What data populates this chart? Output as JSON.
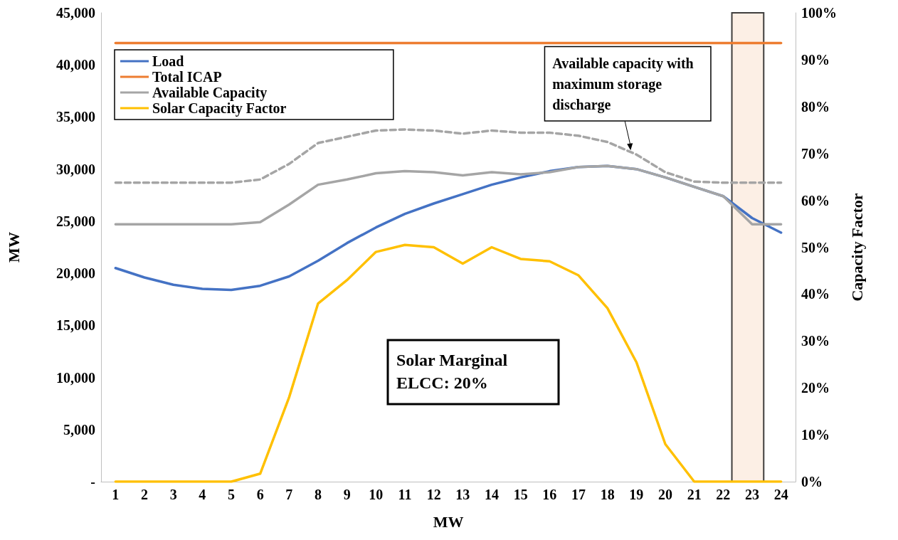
{
  "chart_data": {
    "type": "line",
    "xlabel": "MW",
    "ylabel": "MW",
    "y2label": "Capacity Factor",
    "x": [
      1,
      2,
      3,
      4,
      5,
      6,
      7,
      8,
      9,
      10,
      11,
      12,
      13,
      14,
      15,
      16,
      17,
      18,
      19,
      20,
      21,
      22,
      23,
      24
    ],
    "series": [
      {
        "name": "Load",
        "color": "#4472c4",
        "values": [
          20500,
          19600,
          18900,
          18500,
          18400,
          18800,
          19700,
          21200,
          22900,
          24400,
          25700,
          26700,
          27600,
          28500,
          29200,
          29800,
          30200,
          30300,
          30000,
          29200,
          28300,
          27400,
          25300,
          23900
        ]
      },
      {
        "name": "Total ICAP",
        "color": "#ed7d31",
        "values": [
          42100,
          42100,
          42100,
          42100,
          42100,
          42100,
          42100,
          42100,
          42100,
          42100,
          42100,
          42100,
          42100,
          42100,
          42100,
          42100,
          42100,
          42100,
          42100,
          42100,
          42100,
          42100,
          42100,
          42100
        ]
      },
      {
        "name": "Available Capacity",
        "color": "#a5a5a5",
        "values": [
          24700,
          24700,
          24700,
          24700,
          24700,
          24900,
          26600,
          28500,
          29000,
          29600,
          29800,
          29700,
          29400,
          29700,
          29500,
          29700,
          30200,
          30300,
          30000,
          29200,
          28300,
          27400,
          24700,
          24700
        ]
      },
      {
        "color": "#a5a5a5",
        "line_style": "dashed",
        "values": [
          28700,
          28700,
          28700,
          28700,
          28700,
          29000,
          30500,
          32500,
          33100,
          33700,
          33800,
          33700,
          33400,
          33700,
          33500,
          33500,
          33200,
          32600,
          31400,
          29700,
          28800,
          28700,
          28700,
          28700
        ]
      },
      {
        "name": "Solar Capacity Factor",
        "color": "#ffc000",
        "axis": "y2",
        "values": [
          0,
          0,
          0,
          0,
          0,
          1.7,
          18,
          38,
          43,
          49,
          50.5,
          50,
          46.5,
          50,
          47.5,
          47,
          44,
          37,
          25.5,
          8,
          0,
          0,
          0,
          0
        ]
      }
    ],
    "xlim": [
      0.5,
      24.5
    ],
    "xticks": [
      1,
      2,
      3,
      4,
      5,
      6,
      7,
      8,
      9,
      10,
      11,
      12,
      13,
      14,
      15,
      16,
      17,
      18,
      19,
      20,
      21,
      22,
      23,
      24
    ],
    "ylim": [
      0,
      45000
    ],
    "yticks": [
      {
        "value": 0,
        "label": "-"
      },
      {
        "value": 5000,
        "label": "5,000"
      },
      {
        "value": 10000,
        "label": "10,000"
      },
      {
        "value": 15000,
        "label": "15,000"
      },
      {
        "value": 20000,
        "label": "20,000"
      },
      {
        "value": 25000,
        "label": "25,000"
      },
      {
        "value": 30000,
        "label": "30,000"
      },
      {
        "value": 35000,
        "label": "35,000"
      },
      {
        "value": 40000,
        "label": "40,000"
      },
      {
        "value": 45000,
        "label": "45,000"
      }
    ],
    "y2lim": [
      0,
      100
    ],
    "y2ticks": [
      {
        "value": 0,
        "label": "0%"
      },
      {
        "value": 10,
        "label": "10%"
      },
      {
        "value": 20,
        "label": "20%"
      },
      {
        "value": 30,
        "label": "30%"
      },
      {
        "value": 40,
        "label": "40%"
      },
      {
        "value": 50,
        "label": "50%"
      },
      {
        "value": 60,
        "label": "60%"
      },
      {
        "value": 70,
        "label": "70%"
      },
      {
        "value": 80,
        "label": "80%"
      },
      {
        "value": 90,
        "label": "90%"
      },
      {
        "value": 100,
        "label": "100%"
      }
    ],
    "bands": [
      {
        "axis": "x",
        "from": 22.3,
        "to": 23.4,
        "color": "#fbe9dc"
      }
    ],
    "annotations": [
      {
        "text": "Available capacity with maximum storage discharge",
        "x": 18.8,
        "y": 31800
      },
      "Solar Marginal ELCC: 20%"
    ],
    "legend": "top left",
    "grid": false,
    "marker": "none"
  }
}
